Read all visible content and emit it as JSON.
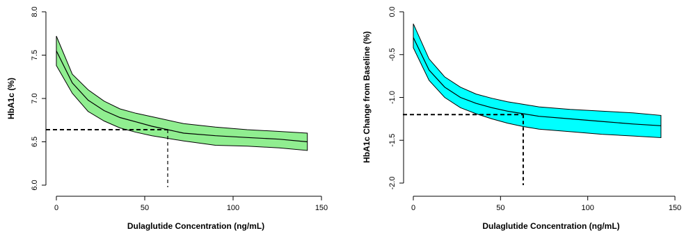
{
  "chart_data": [
    {
      "type": "area",
      "xlabel": "Dulaglutide Concentration (ng/mL)",
      "ylabel": "HbA1c (%)",
      "xlim": [
        0,
        150
      ],
      "ylim": [
        6.0,
        8.0
      ],
      "xticks": [
        0,
        50,
        100,
        150
      ],
      "yticks": [
        6.0,
        6.5,
        7.0,
        7.5,
        8.0
      ],
      "fill_color": "#90ee90",
      "grid": false,
      "x": [
        0,
        9,
        18,
        27,
        36,
        45,
        54,
        63,
        72,
        90,
        108,
        126,
        142
      ],
      "series": [
        {
          "role": "median",
          "values": [
            7.55,
            7.18,
            6.98,
            6.86,
            6.78,
            6.73,
            6.68,
            6.64,
            6.6,
            6.57,
            6.55,
            6.53,
            6.5
          ]
        },
        {
          "role": "upper",
          "values": [
            7.72,
            7.28,
            7.1,
            6.97,
            6.88,
            6.83,
            6.79,
            6.75,
            6.71,
            6.67,
            6.64,
            6.62,
            6.6
          ]
        },
        {
          "role": "lower",
          "values": [
            7.38,
            7.06,
            6.85,
            6.74,
            6.66,
            6.61,
            6.57,
            6.54,
            6.51,
            6.46,
            6.45,
            6.43,
            6.4
          ]
        }
      ],
      "reference_lines": {
        "x": 63,
        "y": 6.64
      }
    },
    {
      "type": "area",
      "xlabel": "Dulaglutide Concentration (ng/mL)",
      "ylabel": "HbA1c Change from Baseline (%)",
      "xlim": [
        0,
        150
      ],
      "ylim": [
        -2.0,
        0.0
      ],
      "xticks": [
        0,
        50,
        100,
        150
      ],
      "yticks": [
        -2.0,
        -1.5,
        -1.0,
        -0.5,
        0.0
      ],
      "fill_color": "#00ffff",
      "grid": false,
      "x": [
        0,
        9,
        18,
        27,
        36,
        45,
        54,
        63,
        72,
        90,
        108,
        126,
        142
      ],
      "series": [
        {
          "role": "median",
          "values": [
            -0.3,
            -0.68,
            -0.88,
            -1.0,
            -1.07,
            -1.12,
            -1.16,
            -1.19,
            -1.22,
            -1.25,
            -1.28,
            -1.31,
            -1.33
          ]
        },
        {
          "role": "upper",
          "values": [
            -0.14,
            -0.55,
            -0.76,
            -0.88,
            -0.96,
            -1.01,
            -1.05,
            -1.08,
            -1.11,
            -1.14,
            -1.16,
            -1.18,
            -1.21
          ]
        },
        {
          "role": "lower",
          "values": [
            -0.42,
            -0.8,
            -1.0,
            -1.12,
            -1.19,
            -1.25,
            -1.3,
            -1.34,
            -1.37,
            -1.4,
            -1.43,
            -1.45,
            -1.47
          ]
        }
      ],
      "reference_lines": {
        "x": 63,
        "y": -1.2
      }
    }
  ]
}
